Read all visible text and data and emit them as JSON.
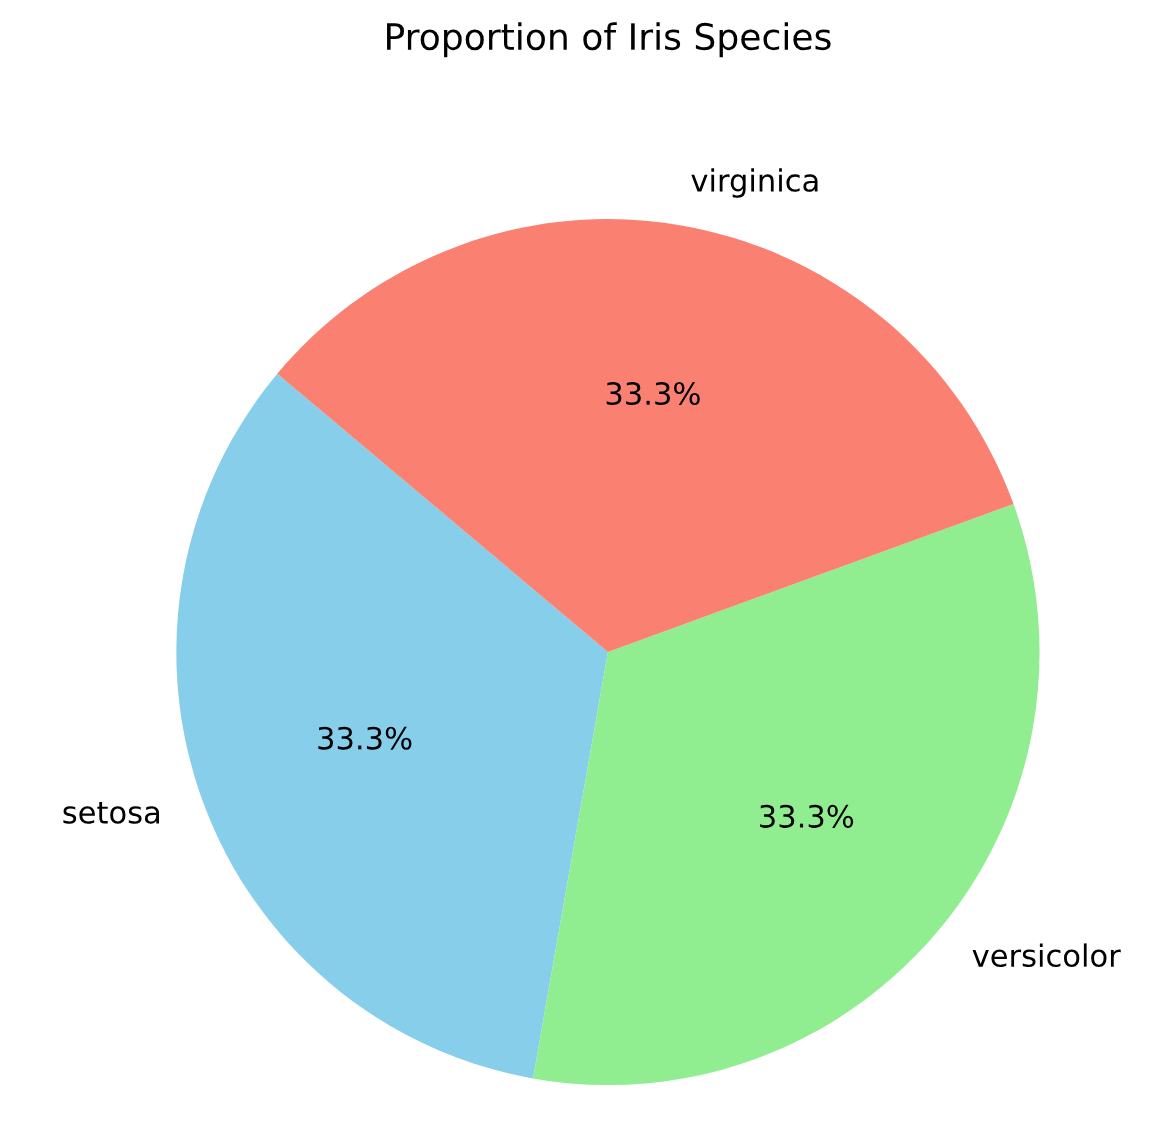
{
  "chart_data": {
    "type": "pie",
    "title": "Proportion of Iris Species",
    "categories": [
      "setosa",
      "versicolor",
      "virginica"
    ],
    "values": [
      33.3,
      33.3,
      33.3
    ],
    "colors": [
      "#87ceeb",
      "#90ee90",
      "#fa8072"
    ],
    "value_labels": [
      "33.3%",
      "33.3%",
      "33.3%"
    ]
  }
}
